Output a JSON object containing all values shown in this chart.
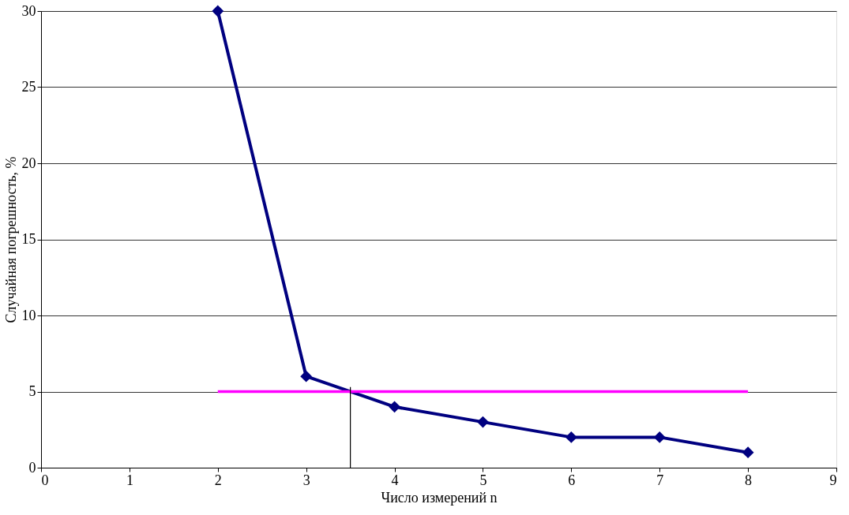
{
  "chart_data": {
    "type": "line",
    "xlabel": "Число измерений n",
    "ylabel": "Случайная погрешность, %",
    "xlim": [
      0,
      9
    ],
    "xticks": [
      0,
      1,
      2,
      3,
      4,
      5,
      6,
      7,
      8,
      9
    ],
    "ylim": [
      0,
      30
    ],
    "yticks": [
      0,
      5,
      10,
      15,
      20,
      25,
      30
    ],
    "grid": "y",
    "series": [
      {
        "x": [
          2,
          3,
          4,
          5,
          6,
          7,
          8
        ],
        "values": [
          30,
          6,
          4,
          3,
          2,
          2,
          1
        ],
        "color": "#000080",
        "marker": "diamond"
      },
      {
        "x": [
          2,
          8
        ],
        "values": [
          5,
          5
        ],
        "color": "#ff00ff",
        "marker": "none"
      },
      {
        "x": [
          3.5,
          3.5
        ],
        "values": [
          0,
          5.3
        ],
        "color": "#000000",
        "marker": "none"
      }
    ]
  }
}
